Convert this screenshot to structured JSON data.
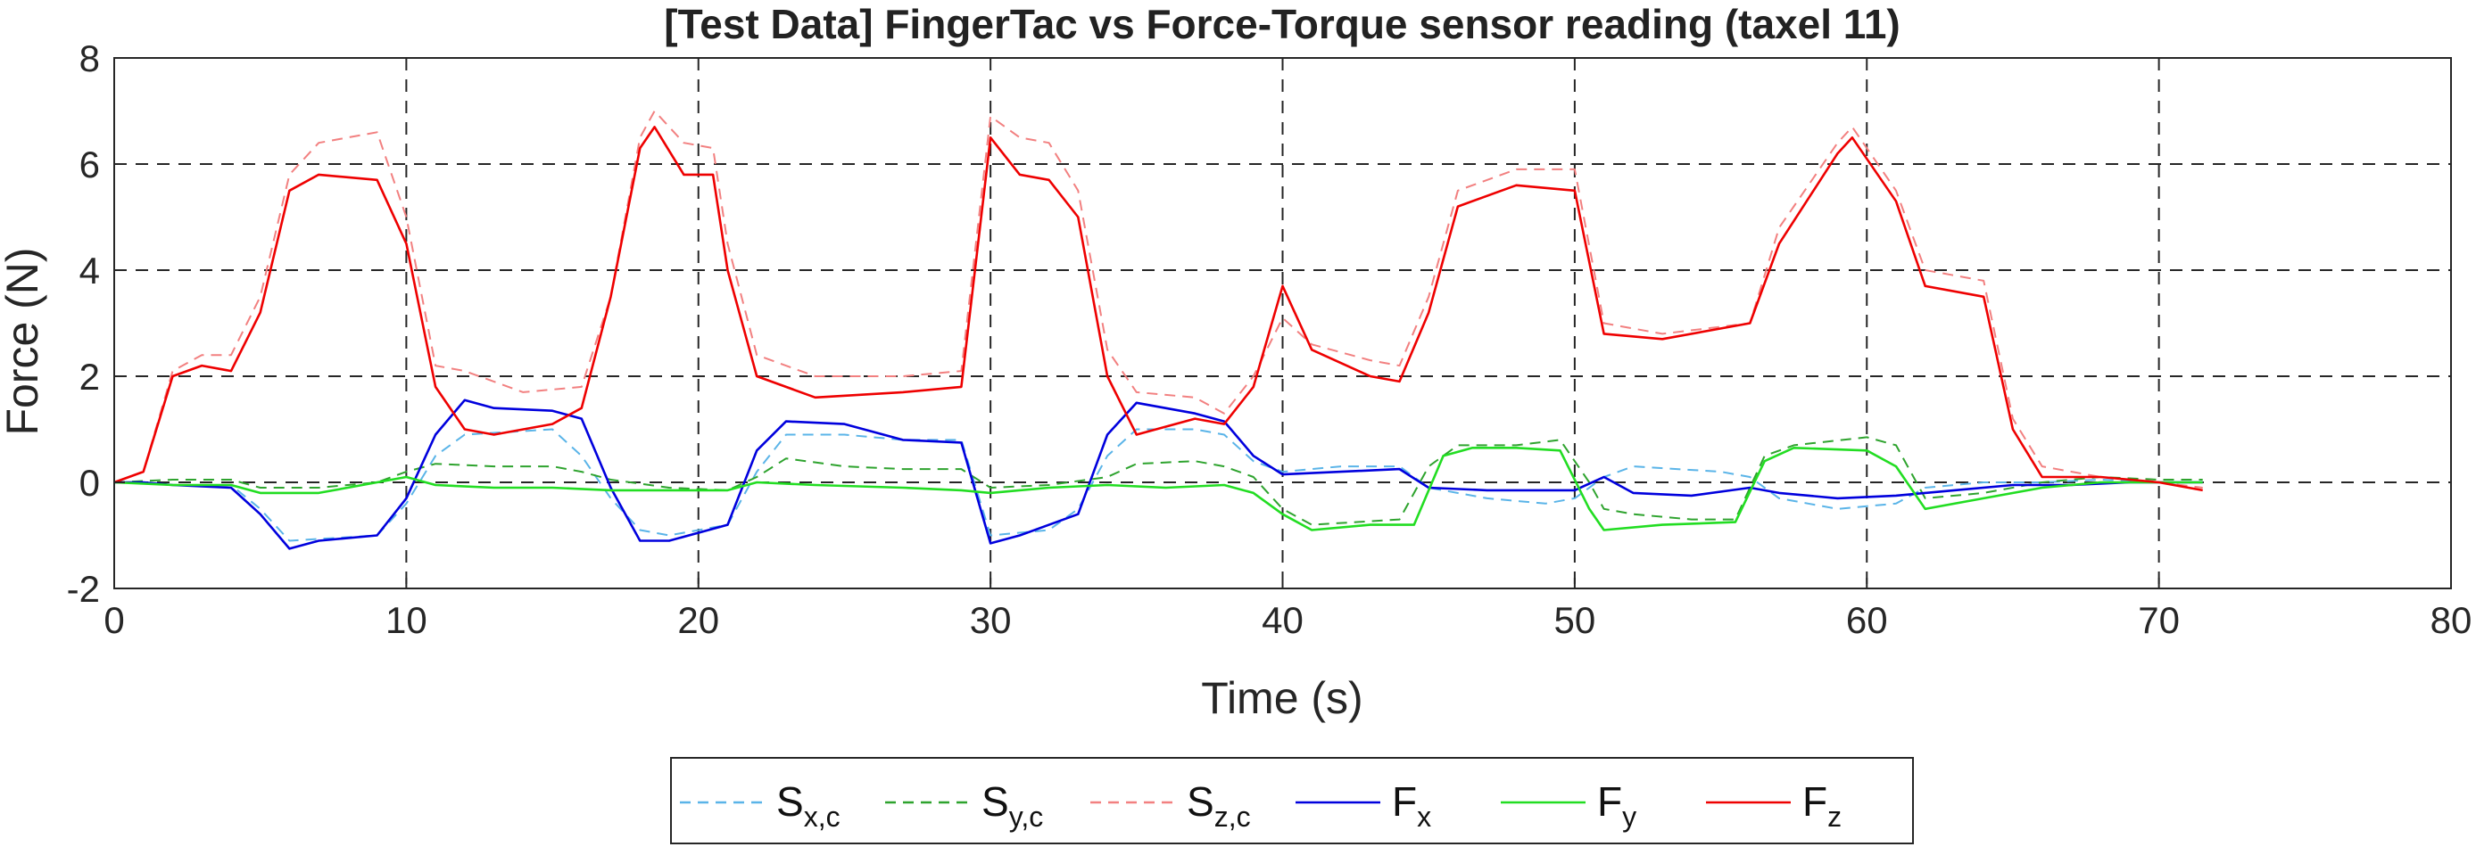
{
  "chart_data": {
    "type": "line",
    "title": "[Test Data] FingerTac vs Force-Torque sensor reading (taxel 11)",
    "xlabel": "Time (s)",
    "ylabel": "Force (N)",
    "xlim": [
      0,
      80
    ],
    "ylim": [
      -2,
      8
    ],
    "xticks": [
      0,
      10,
      20,
      30,
      40,
      50,
      60,
      70,
      80
    ],
    "yticks": [
      -2,
      0,
      2,
      4,
      6,
      8
    ],
    "grid": true,
    "grid_style": "dashed",
    "legend_position": "bottom-outside",
    "series": [
      {
        "name": "S",
        "sub": "x,c",
        "color": "#5ab4e8",
        "dash": "dashed",
        "points": [
          [
            0,
            0
          ],
          [
            1,
            0
          ],
          [
            2,
            -0.05
          ],
          [
            4,
            -0.05
          ],
          [
            5,
            -0.5
          ],
          [
            6,
            -1.1
          ],
          [
            9,
            -1.0
          ],
          [
            10,
            -0.4
          ],
          [
            11,
            0.5
          ],
          [
            12,
            0.9
          ],
          [
            15,
            1.0
          ],
          [
            16,
            0.5
          ],
          [
            17,
            -0.3
          ],
          [
            18,
            -0.9
          ],
          [
            19,
            -1.0
          ],
          [
            21,
            -0.8
          ],
          [
            22,
            0.2
          ],
          [
            23,
            0.9
          ],
          [
            25,
            0.9
          ],
          [
            27,
            0.8
          ],
          [
            29,
            0.8
          ],
          [
            30,
            -1.0
          ],
          [
            32,
            -0.9
          ],
          [
            33,
            -0.5
          ],
          [
            34,
            0.5
          ],
          [
            35,
            1.0
          ],
          [
            37,
            1.0
          ],
          [
            38,
            0.9
          ],
          [
            39,
            0.4
          ],
          [
            40,
            0.2
          ],
          [
            42,
            0.3
          ],
          [
            44,
            0.3
          ],
          [
            45,
            -0.1
          ],
          [
            47,
            -0.3
          ],
          [
            49,
            -0.4
          ],
          [
            50,
            -0.3
          ],
          [
            51,
            0.1
          ],
          [
            52,
            0.3
          ],
          [
            55,
            0.2
          ],
          [
            56,
            0.1
          ],
          [
            57,
            -0.3
          ],
          [
            59,
            -0.5
          ],
          [
            61,
            -0.4
          ],
          [
            62,
            -0.1
          ],
          [
            64,
            0
          ],
          [
            66,
            0
          ],
          [
            68,
            0.05
          ],
          [
            70,
            0
          ],
          [
            71.5,
            0
          ]
        ]
      },
      {
        "name": "S",
        "sub": "y,c",
        "color": "#2ea32e",
        "dash": "dashed",
        "points": [
          [
            0,
            0
          ],
          [
            2,
            0.05
          ],
          [
            4,
            0.05
          ],
          [
            5,
            -0.1
          ],
          [
            7,
            -0.1
          ],
          [
            9,
            0
          ],
          [
            10,
            0.2
          ],
          [
            11,
            0.35
          ],
          [
            13,
            0.3
          ],
          [
            15,
            0.3
          ],
          [
            16,
            0.2
          ],
          [
            17,
            0.05
          ],
          [
            19,
            -0.1
          ],
          [
            21,
            -0.15
          ],
          [
            22,
            0.1
          ],
          [
            23,
            0.45
          ],
          [
            25,
            0.3
          ],
          [
            27,
            0.25
          ],
          [
            29,
            0.25
          ],
          [
            30,
            -0.1
          ],
          [
            32,
            -0.05
          ],
          [
            34,
            0.1
          ],
          [
            35,
            0.35
          ],
          [
            37,
            0.4
          ],
          [
            38,
            0.3
          ],
          [
            39,
            0.1
          ],
          [
            40,
            -0.5
          ],
          [
            41,
            -0.8
          ],
          [
            44,
            -0.7
          ],
          [
            45,
            0.3
          ],
          [
            46,
            0.7
          ],
          [
            48,
            0.7
          ],
          [
            49.5,
            0.8
          ],
          [
            50.5,
            0
          ],
          [
            51,
            -0.5
          ],
          [
            52,
            -0.6
          ],
          [
            54,
            -0.7
          ],
          [
            55.5,
            -0.7
          ],
          [
            56.5,
            0.5
          ],
          [
            57.5,
            0.7
          ],
          [
            60,
            0.85
          ],
          [
            61,
            0.7
          ],
          [
            62,
            -0.3
          ],
          [
            64,
            -0.2
          ],
          [
            66,
            0
          ],
          [
            68,
            0.1
          ],
          [
            70,
            0.05
          ],
          [
            71.5,
            0.05
          ]
        ]
      },
      {
        "name": "S",
        "sub": "z,c",
        "color": "#f28080",
        "dash": "dashed",
        "points": [
          [
            0,
            0
          ],
          [
            1,
            0.2
          ],
          [
            2,
            2.1
          ],
          [
            3,
            2.4
          ],
          [
            4,
            2.4
          ],
          [
            5,
            3.5
          ],
          [
            6,
            5.8
          ],
          [
            7,
            6.4
          ],
          [
            9,
            6.6
          ],
          [
            10,
            5.0
          ],
          [
            11,
            2.2
          ],
          [
            12,
            2.1
          ],
          [
            14,
            1.7
          ],
          [
            16,
            1.8
          ],
          [
            17,
            3.5
          ],
          [
            18,
            6.5
          ],
          [
            18.5,
            7.0
          ],
          [
            19.5,
            6.4
          ],
          [
            20.5,
            6.3
          ],
          [
            21,
            4.5
          ],
          [
            22,
            2.4
          ],
          [
            24,
            2.0
          ],
          [
            27,
            2.0
          ],
          [
            29,
            2.1
          ],
          [
            30,
            6.9
          ],
          [
            31,
            6.5
          ],
          [
            32,
            6.4
          ],
          [
            33,
            5.5
          ],
          [
            34,
            2.5
          ],
          [
            35,
            1.7
          ],
          [
            37,
            1.6
          ],
          [
            38,
            1.3
          ],
          [
            39,
            2.0
          ],
          [
            40,
            3.1
          ],
          [
            41,
            2.6
          ],
          [
            43,
            2.3
          ],
          [
            44,
            2.2
          ],
          [
            45,
            3.5
          ],
          [
            46,
            5.5
          ],
          [
            48,
            5.9
          ],
          [
            50,
            5.9
          ],
          [
            51,
            3.0
          ],
          [
            53,
            2.8
          ],
          [
            56,
            3.0
          ],
          [
            57,
            4.8
          ],
          [
            59,
            6.4
          ],
          [
            59.5,
            6.7
          ],
          [
            61,
            5.5
          ],
          [
            62,
            4.0
          ],
          [
            64,
            3.8
          ],
          [
            65,
            1.2
          ],
          [
            66,
            0.3
          ],
          [
            68,
            0.1
          ],
          [
            70,
            0
          ],
          [
            71.5,
            -0.1
          ]
        ]
      },
      {
        "name": "F",
        "sub": "x",
        "color": "#0000dd",
        "dash": "solid",
        "points": [
          [
            0,
            0
          ],
          [
            1,
            0
          ],
          [
            2,
            -0.05
          ],
          [
            4,
            -0.1
          ],
          [
            5,
            -0.6
          ],
          [
            6,
            -1.25
          ],
          [
            7,
            -1.1
          ],
          [
            9,
            -1.0
          ],
          [
            10,
            -0.3
          ],
          [
            11,
            0.9
          ],
          [
            12,
            1.55
          ],
          [
            13,
            1.4
          ],
          [
            15,
            1.35
          ],
          [
            16,
            1.2
          ],
          [
            17,
            -0.1
          ],
          [
            18,
            -1.1
          ],
          [
            19,
            -1.1
          ],
          [
            21,
            -0.8
          ],
          [
            22,
            0.6
          ],
          [
            23,
            1.15
          ],
          [
            25,
            1.1
          ],
          [
            27,
            0.8
          ],
          [
            29,
            0.75
          ],
          [
            30,
            -1.15
          ],
          [
            31,
            -1.0
          ],
          [
            33,
            -0.6
          ],
          [
            34,
            0.9
          ],
          [
            35,
            1.5
          ],
          [
            37,
            1.3
          ],
          [
            38,
            1.15
          ],
          [
            39,
            0.5
          ],
          [
            40,
            0.15
          ],
          [
            42,
            0.2
          ],
          [
            44,
            0.25
          ],
          [
            45,
            -0.1
          ],
          [
            47,
            -0.15
          ],
          [
            50,
            -0.15
          ],
          [
            51,
            0.1
          ],
          [
            52,
            -0.2
          ],
          [
            54,
            -0.25
          ],
          [
            56,
            -0.1
          ],
          [
            57,
            -0.2
          ],
          [
            59,
            -0.3
          ],
          [
            61,
            -0.25
          ],
          [
            63,
            -0.15
          ],
          [
            65,
            -0.05
          ],
          [
            67,
            -0.05
          ],
          [
            69,
            0
          ],
          [
            71.5,
            0
          ]
        ]
      },
      {
        "name": "F",
        "sub": "y",
        "color": "#22dd22",
        "dash": "solid",
        "points": [
          [
            0,
            0
          ],
          [
            2,
            -0.05
          ],
          [
            4,
            -0.05
          ],
          [
            5,
            -0.2
          ],
          [
            7,
            -0.2
          ],
          [
            9,
            0
          ],
          [
            10,
            0.1
          ],
          [
            11,
            -0.05
          ],
          [
            13,
            -0.1
          ],
          [
            15,
            -0.1
          ],
          [
            17,
            -0.15
          ],
          [
            19,
            -0.15
          ],
          [
            21,
            -0.15
          ],
          [
            22,
            0
          ],
          [
            24,
            -0.05
          ],
          [
            27,
            -0.1
          ],
          [
            29,
            -0.15
          ],
          [
            30,
            -0.2
          ],
          [
            32,
            -0.1
          ],
          [
            34,
            -0.05
          ],
          [
            36,
            -0.1
          ],
          [
            38,
            -0.05
          ],
          [
            39,
            -0.2
          ],
          [
            40,
            -0.6
          ],
          [
            41,
            -0.9
          ],
          [
            43,
            -0.8
          ],
          [
            44.5,
            -0.8
          ],
          [
            45.5,
            0.5
          ],
          [
            46.5,
            0.65
          ],
          [
            48,
            0.65
          ],
          [
            49.5,
            0.6
          ],
          [
            50.5,
            -0.5
          ],
          [
            51,
            -0.9
          ],
          [
            53,
            -0.8
          ],
          [
            55.5,
            -0.75
          ],
          [
            56.5,
            0.4
          ],
          [
            57.5,
            0.65
          ],
          [
            60,
            0.6
          ],
          [
            61,
            0.3
          ],
          [
            62,
            -0.5
          ],
          [
            64,
            -0.3
          ],
          [
            66,
            -0.1
          ],
          [
            68,
            0
          ],
          [
            70,
            0
          ],
          [
            71.5,
            0
          ]
        ]
      },
      {
        "name": "F",
        "sub": "z",
        "color": "#ee0000",
        "dash": "solid",
        "points": [
          [
            0,
            0
          ],
          [
            1,
            0.2
          ],
          [
            2,
            2.0
          ],
          [
            3,
            2.2
          ],
          [
            4,
            2.1
          ],
          [
            5,
            3.2
          ],
          [
            6,
            5.5
          ],
          [
            7,
            5.8
          ],
          [
            9,
            5.7
          ],
          [
            10,
            4.5
          ],
          [
            11,
            1.8
          ],
          [
            12,
            1.0
          ],
          [
            13,
            0.9
          ],
          [
            15,
            1.1
          ],
          [
            16,
            1.4
          ],
          [
            17,
            3.5
          ],
          [
            18,
            6.3
          ],
          [
            18.5,
            6.7
          ],
          [
            19.5,
            5.8
          ],
          [
            20.5,
            5.8
          ],
          [
            21,
            4.0
          ],
          [
            22,
            2.0
          ],
          [
            24,
            1.6
          ],
          [
            27,
            1.7
          ],
          [
            29,
            1.8
          ],
          [
            30,
            6.5
          ],
          [
            31,
            5.8
          ],
          [
            32,
            5.7
          ],
          [
            33,
            5.0
          ],
          [
            34,
            2.0
          ],
          [
            35,
            0.9
          ],
          [
            37,
            1.2
          ],
          [
            38,
            1.1
          ],
          [
            39,
            1.8
          ],
          [
            40,
            3.7
          ],
          [
            41,
            2.5
          ],
          [
            43,
            2.0
          ],
          [
            44,
            1.9
          ],
          [
            45,
            3.2
          ],
          [
            46,
            5.2
          ],
          [
            48,
            5.6
          ],
          [
            50,
            5.5
          ],
          [
            51,
            2.8
          ],
          [
            53,
            2.7
          ],
          [
            56,
            3.0
          ],
          [
            57,
            4.5
          ],
          [
            59,
            6.2
          ],
          [
            59.5,
            6.5
          ],
          [
            61,
            5.3
          ],
          [
            62,
            3.7
          ],
          [
            64,
            3.5
          ],
          [
            65,
            1.0
          ],
          [
            66,
            0.1
          ],
          [
            68,
            0.1
          ],
          [
            70,
            0
          ],
          [
            71.5,
            -0.15
          ]
        ]
      }
    ]
  }
}
